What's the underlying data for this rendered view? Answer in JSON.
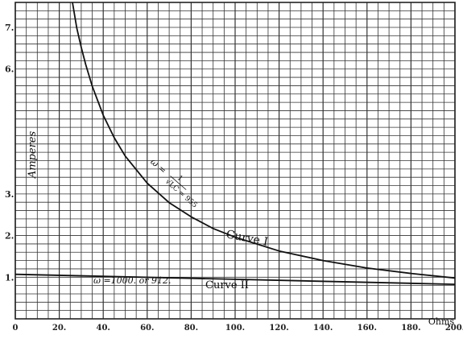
{
  "chart_data": {
    "type": "line",
    "xlabel": "Ohms",
    "ylabel": "Amperes",
    "xlim": [
      0,
      200
    ],
    "ylim": [
      0,
      7.6
    ],
    "x_ticks": [
      "0",
      "20.",
      "40.",
      "60.",
      "80.",
      "100.",
      "120.",
      "140.",
      "160.",
      "180.",
      "200."
    ],
    "y_ticks": [
      {
        "value": 1,
        "label": "1."
      },
      {
        "value": 2,
        "label": "2."
      },
      {
        "value": 3,
        "label": "3."
      },
      {
        "value": 6,
        "label": "6."
      },
      {
        "value": 7,
        "label": "7."
      }
    ],
    "grid": true,
    "series": [
      {
        "name": "Curve I",
        "x": [
          26,
          28,
          30,
          32,
          35,
          40,
          45,
          50,
          60,
          70,
          80,
          90,
          100,
          120,
          140,
          160,
          180,
          200
        ],
        "y": [
          7.6,
          6.98,
          6.52,
          6.11,
          5.59,
          4.89,
          4.35,
          3.91,
          3.26,
          2.79,
          2.45,
          2.17,
          1.96,
          1.63,
          1.4,
          1.22,
          1.09,
          0.98
        ]
      },
      {
        "name": "Curve II",
        "x": [
          0,
          200
        ],
        "y": [
          1.07,
          0.83
        ]
      }
    ],
    "annotations": {
      "curve1_label": "Curve I",
      "curve2_label": "Curve II",
      "formula1_prefix": "ω =",
      "formula1_num": "1",
      "formula1_den": "√LC = 955",
      "formula2": "ω =1000. or 912."
    }
  }
}
